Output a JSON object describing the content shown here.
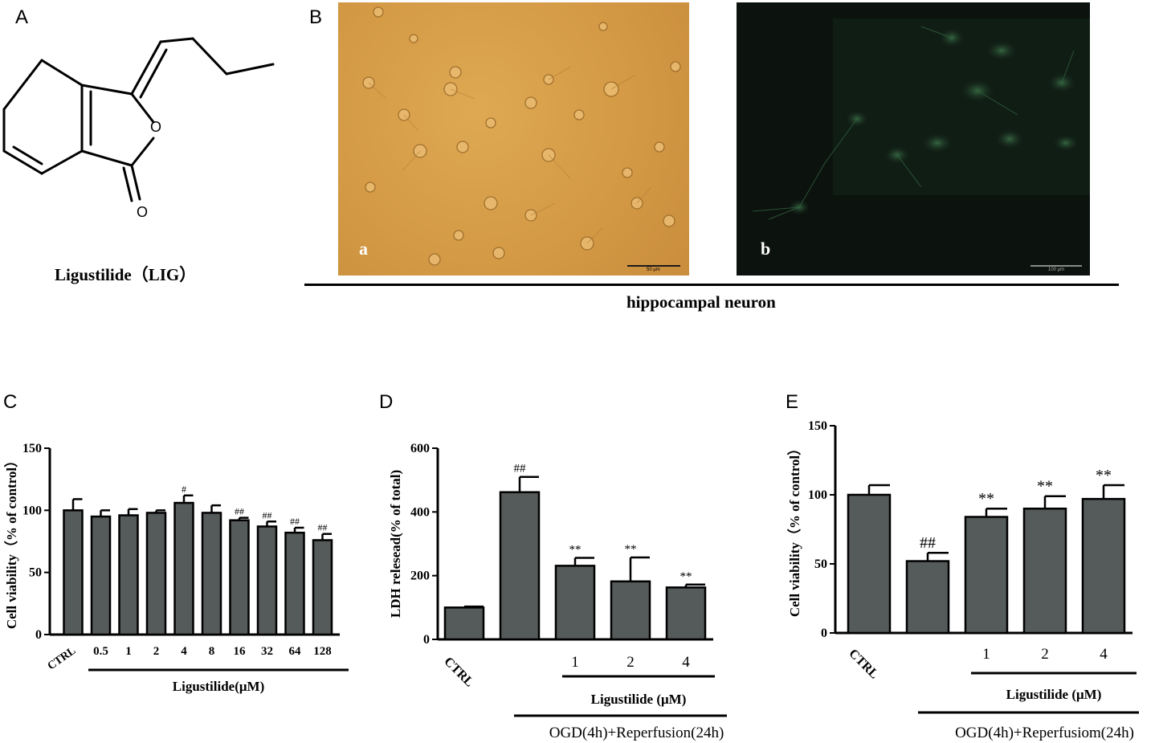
{
  "panels": {
    "A": {
      "letter": "A",
      "structure_caption": "Ligustilide（LIG）",
      "atom_labels": [
        "O",
        "O"
      ]
    },
    "B": {
      "letter": "B",
      "photo_labels": [
        "a",
        "b"
      ],
      "scale_labels": [
        "50 μm",
        "100 μm"
      ],
      "caption": "hippocampal neuron"
    }
  },
  "chart_data": [
    {
      "panel": "C",
      "type": "bar",
      "ylabel": "Cell viability（% of control）",
      "xgroup_label": "Ligustilide(μM)",
      "categories": [
        "CTRL",
        "0.5",
        "1",
        "2",
        "4",
        "8",
        "16",
        "32",
        "64",
        "128"
      ],
      "values": [
        100,
        95,
        96,
        98,
        106,
        98,
        92,
        87,
        82,
        76
      ],
      "errors": [
        9,
        5,
        5,
        2,
        6,
        6,
        2,
        4,
        4,
        5
      ],
      "annotations": [
        "",
        "",
        "",
        "",
        "#",
        "",
        "##",
        "##",
        "##",
        "##"
      ],
      "ylim": [
        0,
        150
      ],
      "yticks": [
        0,
        50,
        100,
        150
      ],
      "bar_color": "#555a5b"
    },
    {
      "panel": "D",
      "type": "bar",
      "ylabel": "LDH relesead(% of total)",
      "xgroup_label": "Ligustilide (μM)",
      "xgroup2_label": "OGD(4h)+Reperfusion(24h)",
      "categories": [
        "CTRL",
        "",
        "1",
        "2",
        "4"
      ],
      "values": [
        100,
        462,
        231,
        182,
        163
      ],
      "errors": [
        3,
        48,
        25,
        75,
        9
      ],
      "annotations": [
        "",
        "##",
        "**",
        "**",
        "**"
      ],
      "ylim": [
        0,
        600
      ],
      "yticks": [
        0,
        200,
        400,
        600
      ],
      "bar_color": "#555a5b"
    },
    {
      "panel": "E",
      "type": "bar",
      "ylabel": "Cell viability（% of control）",
      "xgroup_label": "Ligustilide (μM)",
      "xgroup2_label": "OGD(4h)+Reperfusiom(24h)",
      "categories": [
        "CTRL",
        "",
        "1",
        "2",
        "4"
      ],
      "values": [
        100,
        52,
        84,
        90,
        97
      ],
      "errors": [
        7,
        6,
        6,
        9,
        10
      ],
      "annotations": [
        "",
        "##",
        "**",
        "**",
        "**"
      ],
      "ylim": [
        0,
        150
      ],
      "yticks": [
        0,
        50,
        100,
        150
      ],
      "bar_color": "#555a5b"
    }
  ]
}
